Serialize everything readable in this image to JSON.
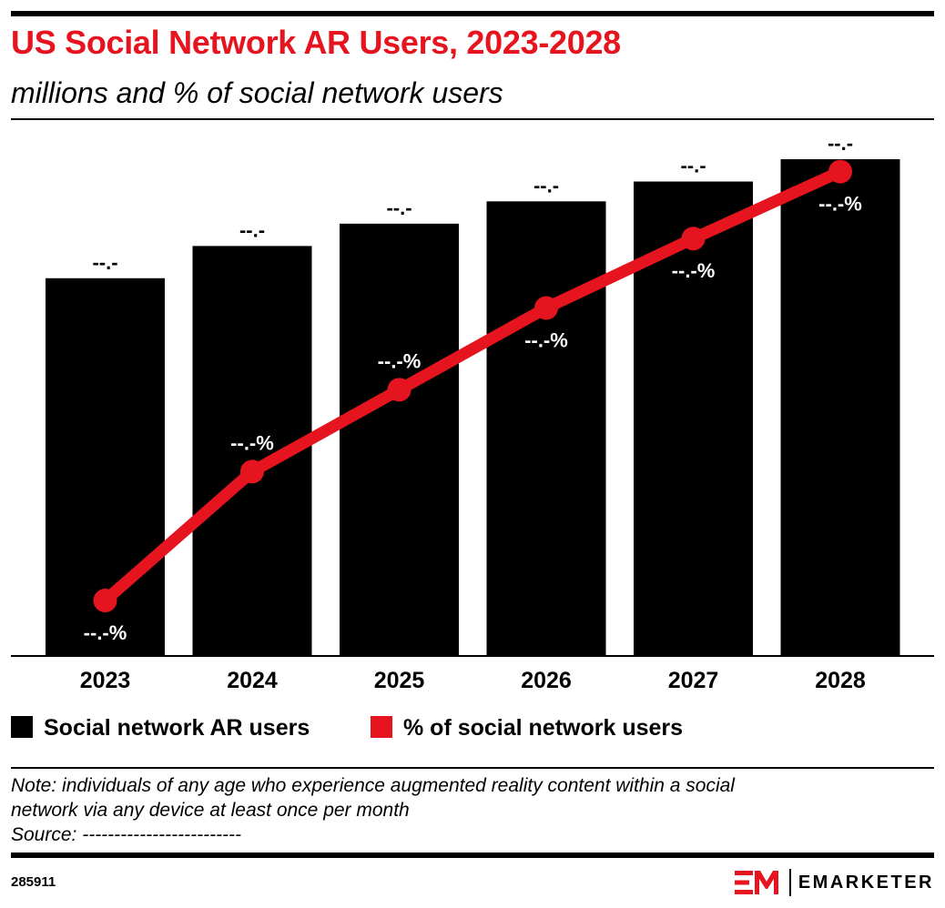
{
  "header": {
    "title": "US Social Network AR Users, 2023-2028",
    "subtitle": "millions and % of social network users"
  },
  "chart_data": {
    "type": "bar",
    "categories": [
      "2023",
      "2024",
      "2025",
      "2026",
      "2027",
      "2028"
    ],
    "series": [
      {
        "name": "Social network AR users",
        "kind": "bar",
        "color": "#000000",
        "values": [
          76,
          82.5,
          87,
          91.5,
          95.5,
          100
        ],
        "labels": [
          "--.-",
          "--.-",
          "--.-",
          "--.-",
          "--.-",
          "--.-"
        ]
      },
      {
        "name": "% of social network users",
        "kind": "line",
        "color": "#e5141e",
        "values": [
          11,
          37,
          53.5,
          70,
          84,
          97.5
        ],
        "labels": [
          "--.-%",
          "--.-%",
          "--.-%",
          "--.-%",
          "--.-%",
          "--.-%"
        ]
      }
    ],
    "ylim": [
      0,
      100
    ],
    "grid": false,
    "legend_position": "bottom-left"
  },
  "legend": {
    "items": [
      {
        "label": "Social network AR users",
        "color": "#000000"
      },
      {
        "label": "% of social network users",
        "color": "#e5141e"
      }
    ]
  },
  "footer": {
    "note_line1": "Note: individuals of any age who experience augmented reality content within a social",
    "note_line2": "network via any device at least once per month",
    "source": "Source: -------------------------",
    "chart_id": "285911",
    "brand": "EMARKETER"
  }
}
